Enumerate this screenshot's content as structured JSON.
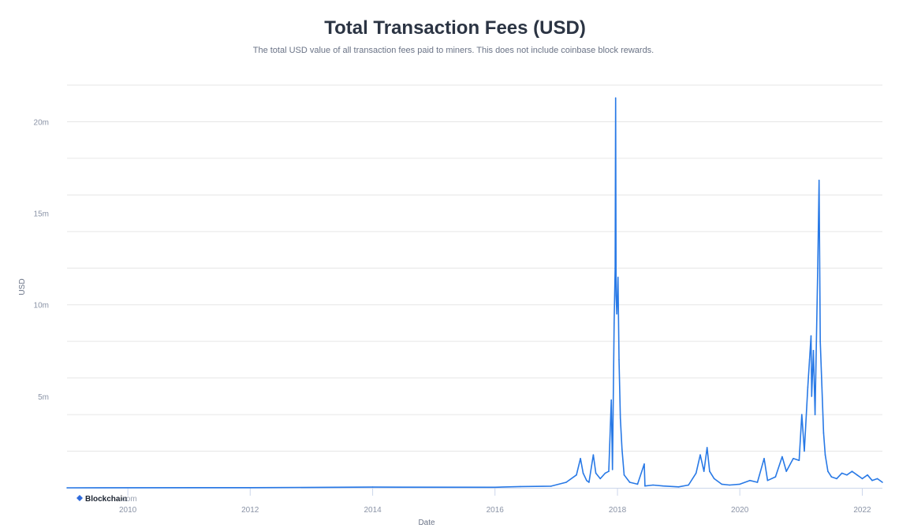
{
  "chart_data": {
    "type": "line",
    "title": "Total Transaction Fees (USD)",
    "subtitle": "The total USD value of all transaction fees paid to miners. This does not include coinbase block rewards.",
    "xlabel": "Date",
    "ylabel": "USD",
    "xlim": [
      "2009-01-03",
      "2022-05-01"
    ],
    "ylim": [
      0,
      22000000
    ],
    "grid": true,
    "legend": "none",
    "x_ticks": [
      {
        "date": "2010-01-01",
        "label": "2010"
      },
      {
        "date": "2012-01-01",
        "label": "2012"
      },
      {
        "date": "2014-01-01",
        "label": "2014"
      },
      {
        "date": "2016-01-01",
        "label": "2016"
      },
      {
        "date": "2018-01-01",
        "label": "2018"
      },
      {
        "date": "2020-01-01",
        "label": "2020"
      },
      {
        "date": "2022-01-01",
        "label": "2022"
      }
    ],
    "y_ticks": [
      {
        "value": 5000000,
        "label": "5m"
      },
      {
        "value": 10000000,
        "label": "10m"
      },
      {
        "value": 15000000,
        "label": "15m"
      },
      {
        "value": 20000000,
        "label": "20m"
      }
    ],
    "series": [
      {
        "color": "#2879e6",
        "points": [
          [
            "2009-01-03",
            0
          ],
          [
            "2012-01-01",
            10000
          ],
          [
            "2014-01-01",
            40000
          ],
          [
            "2016-01-01",
            30000
          ],
          [
            "2016-06-01",
            70000
          ],
          [
            "2016-12-01",
            90000
          ],
          [
            "2017-03-01",
            300000
          ],
          [
            "2017-05-01",
            700000
          ],
          [
            "2017-05-25",
            1600000
          ],
          [
            "2017-06-10",
            800000
          ],
          [
            "2017-07-01",
            400000
          ],
          [
            "2017-07-15",
            300000
          ],
          [
            "2017-08-10",
            1800000
          ],
          [
            "2017-08-25",
            800000
          ],
          [
            "2017-09-20",
            500000
          ],
          [
            "2017-10-20",
            800000
          ],
          [
            "2017-11-10",
            900000
          ],
          [
            "2017-11-25",
            4800000
          ],
          [
            "2017-12-02",
            1000000
          ],
          [
            "2017-12-12",
            9000000
          ],
          [
            "2017-12-18",
            12000000
          ],
          [
            "2017-12-21",
            21300000
          ],
          [
            "2017-12-24",
            10500000
          ],
          [
            "2017-12-28",
            9500000
          ],
          [
            "2018-01-04",
            11500000
          ],
          [
            "2018-01-10",
            7000000
          ],
          [
            "2018-01-18",
            3800000
          ],
          [
            "2018-01-28",
            2100000
          ],
          [
            "2018-02-10",
            700000
          ],
          [
            "2018-03-15",
            300000
          ],
          [
            "2018-05-01",
            200000
          ],
          [
            "2018-06-10",
            1300000
          ],
          [
            "2018-06-14",
            100000
          ],
          [
            "2018-08-01",
            150000
          ],
          [
            "2018-10-01",
            100000
          ],
          [
            "2019-01-01",
            50000
          ],
          [
            "2019-03-01",
            150000
          ],
          [
            "2019-04-15",
            800000
          ],
          [
            "2019-05-10",
            1800000
          ],
          [
            "2019-06-01",
            900000
          ],
          [
            "2019-06-20",
            2200000
          ],
          [
            "2019-07-05",
            900000
          ],
          [
            "2019-08-01",
            500000
          ],
          [
            "2019-09-15",
            200000
          ],
          [
            "2019-11-01",
            150000
          ],
          [
            "2020-01-01",
            200000
          ],
          [
            "2020-03-01",
            400000
          ],
          [
            "2020-04-15",
            300000
          ],
          [
            "2020-05-25",
            1600000
          ],
          [
            "2020-06-15",
            400000
          ],
          [
            "2020-08-01",
            600000
          ],
          [
            "2020-09-10",
            1700000
          ],
          [
            "2020-10-05",
            900000
          ],
          [
            "2020-11-15",
            1600000
          ],
          [
            "2020-12-20",
            1500000
          ],
          [
            "2021-01-05",
            4000000
          ],
          [
            "2021-01-20",
            2000000
          ],
          [
            "2021-02-10",
            5500000
          ],
          [
            "2021-02-20",
            7000000
          ],
          [
            "2021-03-01",
            8300000
          ],
          [
            "2021-03-05",
            5000000
          ],
          [
            "2021-03-15",
            7500000
          ],
          [
            "2021-03-25",
            4000000
          ],
          [
            "2021-04-10",
            12000000
          ],
          [
            "2021-04-18",
            16800000
          ],
          [
            "2021-04-25",
            8000000
          ],
          [
            "2021-05-05",
            5500000
          ],
          [
            "2021-05-15",
            3000000
          ],
          [
            "2021-05-25",
            1800000
          ],
          [
            "2021-06-10",
            900000
          ],
          [
            "2021-07-01",
            600000
          ],
          [
            "2021-08-01",
            500000
          ],
          [
            "2021-09-01",
            800000
          ],
          [
            "2021-10-01",
            700000
          ],
          [
            "2021-11-01",
            900000
          ],
          [
            "2021-12-01",
            700000
          ],
          [
            "2022-01-01",
            500000
          ],
          [
            "2022-02-01",
            700000
          ],
          [
            "2022-03-01",
            400000
          ],
          [
            "2022-04-01",
            500000
          ],
          [
            "2022-05-01",
            300000
          ]
        ]
      }
    ]
  },
  "brand": {
    "name": "Blockchain",
    "domain": ".com"
  }
}
